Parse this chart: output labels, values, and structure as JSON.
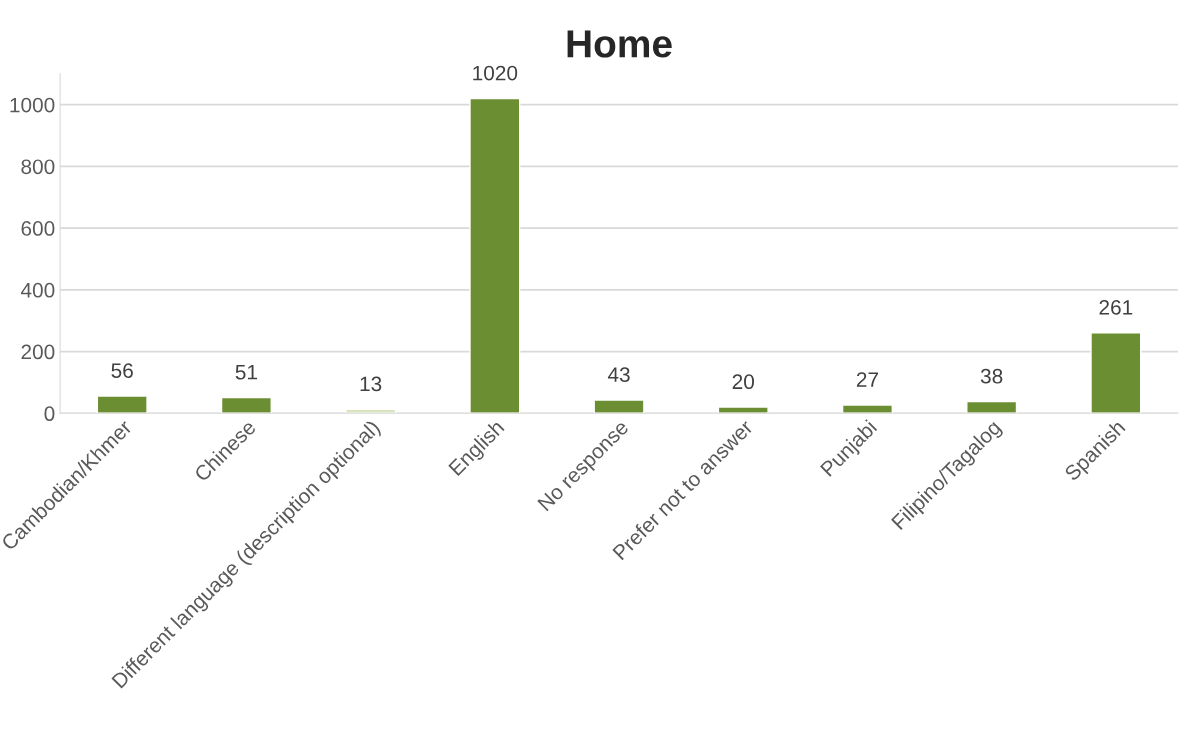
{
  "chart_data": {
    "type": "bar",
    "title": "Home",
    "categories": [
      "Cambodian/Khmer",
      "Chinese",
      "Different language (description optional)",
      "English",
      "No response",
      "Prefer not to answer",
      "Punjabi",
      "Filipino/Tagalog",
      "Spanish"
    ],
    "values": [
      56,
      51,
      13,
      1020,
      43,
      20,
      27,
      38,
      261
    ],
    "colors": [
      "#6b8e32",
      "#6b8e32",
      "#d7e4bd",
      "#6b8e32",
      "#6b8e32",
      "#6b8e32",
      "#6b8e32",
      "#6b8e32",
      "#6b8e32"
    ],
    "ylim": [
      0,
      1100
    ],
    "yticks": [
      0,
      200,
      400,
      600,
      800,
      1000
    ],
    "grid": "y",
    "data_labels": true,
    "legend": false
  }
}
